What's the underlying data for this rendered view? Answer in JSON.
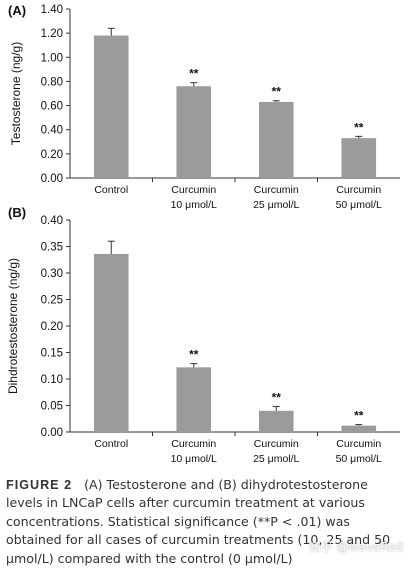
{
  "chart_data": [
    {
      "type": "bar",
      "panel_label": "(A)",
      "ylabel": "Testosterone (ng/g)",
      "categories": [
        [
          "Control"
        ],
        [
          "Curcumin",
          "10 μmol/L"
        ],
        [
          "Curcumin",
          "25 μmol/L"
        ],
        [
          "Curcumin",
          "50 μmol/L"
        ]
      ],
      "values": [
        1.18,
        0.76,
        0.63,
        0.33
      ],
      "errors": [
        0.06,
        0.03,
        0.01,
        0.015
      ],
      "annotations": [
        "",
        "**",
        "**",
        "**"
      ],
      "ylim": [
        0,
        1.4
      ],
      "yticks": [
        "0.00",
        "0.20",
        "0.40",
        "0.60",
        "0.80",
        "1.00",
        "1.20",
        "1.40"
      ],
      "bar_color": "#9b9b9b",
      "grid": false
    },
    {
      "type": "bar",
      "panel_label": "(B)",
      "ylabel": "Dihdrotestosterone (ng/g)",
      "categories": [
        [
          "Control"
        ],
        [
          "Curcumin",
          "10 μmol/L"
        ],
        [
          "Curcumin",
          "25 μmol/L"
        ],
        [
          "Curcumin",
          "50 μmol/L"
        ]
      ],
      "values": [
        0.336,
        0.122,
        0.04,
        0.012
      ],
      "errors": [
        0.024,
        0.007,
        0.008,
        0.002
      ],
      "annotations": [
        "",
        "**",
        "**",
        "**"
      ],
      "ylim": [
        0,
        0.4
      ],
      "yticks": [
        "0.00",
        "0.05",
        "0.10",
        "0.15",
        "0.20",
        "0.25",
        "0.30",
        "0.35",
        "0.40"
      ],
      "bar_color": "#9b9b9b",
      "grid": false
    }
  ],
  "caption": {
    "label": "FIGURE 2",
    "text": "(A) Testosterone and (B) dihydrotestosterone levels in LNCaP cells after curcumin treatment at various concentrations. Statistical significance (**P < .01) was obtained for all cases of curcumin treatments (10, 25 and 50 μmol/L) compared with the control (0 μmol/L)"
  },
  "watermark": "知乎 @waveRod"
}
